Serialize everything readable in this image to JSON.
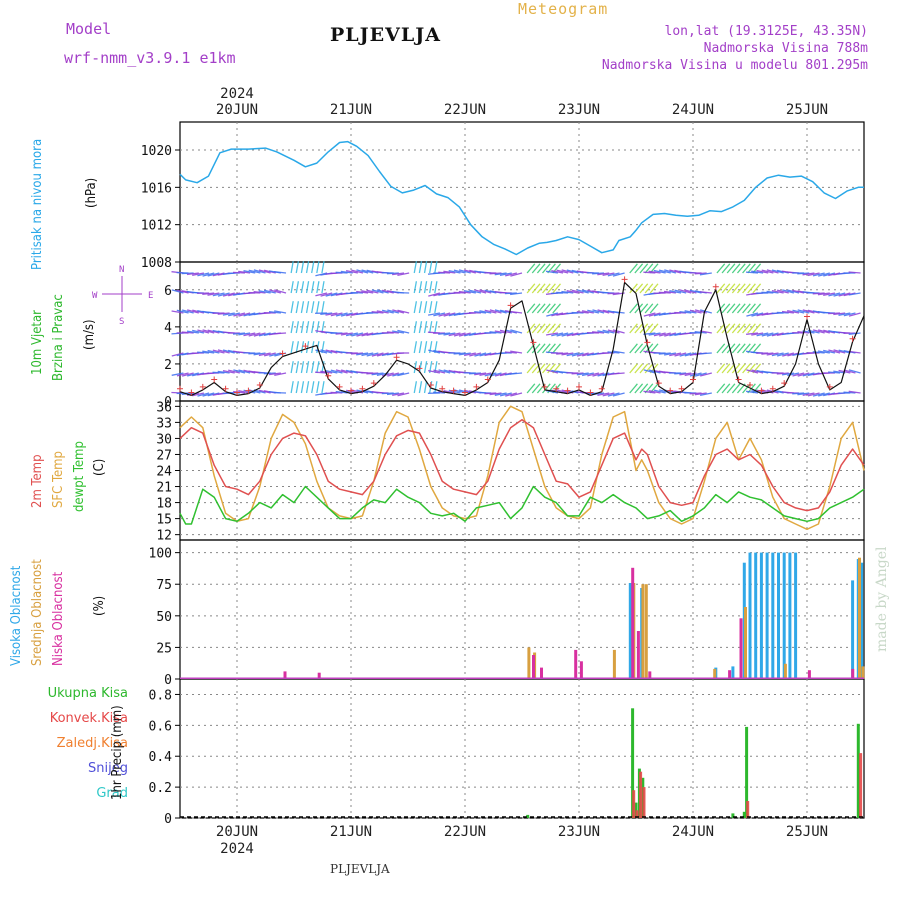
{
  "header": {
    "model_label": "Model",
    "model_name": "wrf-nmm_v3.9.1  e1km",
    "title": "PLJEVLJA",
    "product": "Meteogram",
    "lonlat": "lon,lat (19.3125E, 43.35N)",
    "elevation": "Nadmorska Visina 788m",
    "model_elevation": "Nadmorska Visina u modelu 801.295m"
  },
  "footer": {
    "station": "PLJEVLJA",
    "credit": "made by Angel"
  },
  "colors": {
    "pressure": "#2aa8e8",
    "wind": "#22c040",
    "temp2m": "#e05050",
    "sfc": "#e0a840",
    "dewpt": "#30c030",
    "high_cloud": "#30a8e8",
    "mid_cloud": "#d8a040",
    "low_cloud": "#d830a0",
    "total_precip": "#2db82d",
    "conv_precip": "#e54848",
    "frozen_precip": "#f08030",
    "snow": "#5050d8",
    "graupel": "#30c8c8",
    "axis_label": "#111111",
    "brand": "#a33fc8"
  },
  "axis_labels": {
    "pressure": [
      "Pritisak na nivou mora",
      "(hPa)"
    ],
    "wind": [
      "10m Vjetar",
      "Brzina i Pravac",
      "(m/s)"
    ],
    "temp": [
      "2m Temp",
      "SFC Temp",
      "dewpt Temp",
      "(C)"
    ],
    "cloud": [
      "Visoka Oblacnost",
      "Srednja Oblacnost",
      "Niska Oblacnost",
      "(%)"
    ],
    "precip": [
      "1hr Precip (mm)"
    ],
    "precip_legend": [
      "Ukupna Kisa",
      "Konvek.Kisa",
      "Zaledj.Kisa",
      "Snijeg",
      "Grad"
    ],
    "compass": [
      "N",
      "S",
      "W",
      "E"
    ]
  },
  "chart_data": {
    "type": "line",
    "year": "2024",
    "x_ticks": [
      "20JUN",
      "21JUN",
      "22JUN",
      "23JUN",
      "24JUN",
      "25JUN"
    ],
    "panels": [
      {
        "name": "pressure",
        "unit": "hPa",
        "ylim": [
          1008,
          1023
        ],
        "ticks": [
          1008,
          1012,
          1016,
          1020
        ],
        "series": [
          {
            "name": "Pritisak na nivou mora",
            "x": [
              -0.5,
              -0.45,
              -0.35,
              -0.25,
              -0.15,
              -0.05,
              0.1,
              0.25,
              0.35,
              0.5,
              0.6,
              0.7,
              0.8,
              0.9,
              0.97,
              1.05,
              1.15,
              1.25,
              1.35,
              1.45,
              1.55,
              1.65,
              1.75,
              1.85,
              1.95,
              2.05,
              2.15,
              2.25,
              2.35,
              2.45,
              2.55,
              2.65,
              2.72,
              2.8,
              2.9,
              3.0,
              3.1,
              3.2,
              3.3,
              3.35,
              3.45,
              3.5,
              3.55,
              3.65,
              3.75,
              3.85,
              3.95,
              4.05,
              4.15,
              4.25,
              4.35,
              4.45,
              4.55,
              4.65,
              4.75,
              4.85,
              4.95,
              5.05,
              5.15,
              5.25,
              5.35,
              5.45,
              5.5
            ],
            "values": [
              1017.4,
              1016.8,
              1016.5,
              1017.2,
              1019.7,
              1020.1,
              1020.1,
              1020.2,
              1019.8,
              1018.9,
              1018.2,
              1018.6,
              1019.8,
              1020.8,
              1020.9,
              1020.4,
              1019.4,
              1017.7,
              1016.1,
              1015.4,
              1015.7,
              1016.2,
              1015.3,
              1014.9,
              1013.9,
              1012.0,
              1010.7,
              1009.9,
              1009.4,
              1008.8,
              1009.5,
              1010.0,
              1010.1,
              1010.3,
              1010.7,
              1010.4,
              1009.7,
              1009.0,
              1009.3,
              1010.3,
              1010.7,
              1011.4,
              1012.2,
              1013.1,
              1013.2,
              1013.0,
              1012.9,
              1013.0,
              1013.5,
              1013.4,
              1013.9,
              1014.6,
              1016.0,
              1017.0,
              1017.3,
              1017.1,
              1017.2,
              1016.6,
              1015.4,
              1014.8,
              1015.6,
              1016.0,
              1016.0
            ]
          }
        ]
      },
      {
        "name": "wind",
        "unit": "m/s",
        "ylim": [
          0,
          7.5
        ],
        "ticks": [
          0,
          2,
          4,
          6
        ],
        "series": [
          {
            "name": "10m Vjetar Brzina",
            "x": [
              -0.5,
              -0.4,
              -0.3,
              -0.2,
              -0.1,
              0.0,
              0.1,
              0.2,
              0.3,
              0.4,
              0.5,
              0.6,
              0.7,
              0.8,
              0.9,
              1.0,
              1.1,
              1.2,
              1.3,
              1.4,
              1.5,
              1.6,
              1.7,
              1.8,
              1.9,
              2.0,
              2.1,
              2.2,
              2.3,
              2.4,
              2.5,
              2.6,
              2.7,
              2.8,
              2.9,
              3.0,
              3.1,
              3.2,
              3.3,
              3.4,
              3.5,
              3.6,
              3.7,
              3.8,
              3.9,
              4.0,
              4.1,
              4.2,
              4.3,
              4.4,
              4.5,
              4.6,
              4.7,
              4.8,
              4.9,
              5.0,
              5.1,
              5.2,
              5.3,
              5.4,
              5.5
            ],
            "values": [
              0.5,
              0.3,
              0.6,
              1.0,
              0.5,
              0.3,
              0.4,
              0.7,
              1.8,
              2.4,
              2.6,
              2.8,
              3.0,
              1.2,
              0.6,
              0.4,
              0.5,
              0.8,
              1.4,
              2.2,
              2.0,
              1.6,
              0.7,
              0.5,
              0.4,
              0.3,
              0.6,
              1.0,
              2.2,
              5.0,
              5.4,
              3.0,
              0.6,
              0.5,
              0.4,
              0.6,
              0.3,
              0.5,
              2.8,
              6.4,
              5.8,
              3.0,
              0.8,
              0.4,
              0.5,
              1.0,
              4.8,
              6.0,
              3.4,
              1.0,
              0.7,
              0.4,
              0.5,
              0.8,
              2.0,
              4.4,
              2.0,
              0.6,
              1.0,
              3.2,
              4.6
            ]
          }
        ]
      },
      {
        "name": "temp",
        "unit": "C",
        "ylim": [
          11,
          37
        ],
        "ticks": [
          12,
          15,
          18,
          21,
          24,
          27,
          30,
          33,
          36
        ],
        "series": [
          {
            "name": "2m Temp",
            "x": [
              -0.5,
              -0.4,
              -0.3,
              -0.2,
              -0.1,
              0.0,
              0.1,
              0.2,
              0.3,
              0.4,
              0.5,
              0.6,
              0.7,
              0.8,
              0.9,
              1.0,
              1.1,
              1.2,
              1.3,
              1.4,
              1.5,
              1.6,
              1.7,
              1.8,
              1.9,
              2.0,
              2.1,
              2.2,
              2.3,
              2.4,
              2.5,
              2.6,
              2.7,
              2.8,
              2.9,
              3.0,
              3.1,
              3.2,
              3.3,
              3.4,
              3.5,
              3.55,
              3.6,
              3.7,
              3.8,
              3.9,
              4.0,
              4.1,
              4.2,
              4.3,
              4.4,
              4.5,
              4.6,
              4.7,
              4.8,
              4.9,
              5.0,
              5.1,
              5.2,
              5.3,
              5.4,
              5.5
            ],
            "values": [
              30,
              32,
              31,
              25,
              21,
              20.5,
              19.5,
              22,
              27,
              30,
              31,
              30.5,
              27,
              22,
              20.5,
              20,
              19.5,
              22,
              27,
              30.5,
              31.5,
              31,
              27,
              22,
              20.5,
              20,
              19.5,
              22,
              28,
              32,
              33.5,
              32,
              27,
              22,
              21.5,
              19,
              20,
              25,
              30,
              31,
              26,
              28,
              27,
              21,
              18,
              17.5,
              18,
              23,
              27,
              28,
              26,
              27,
              25,
              21,
              18,
              17,
              16.5,
              17,
              20,
              25,
              28,
              25
            ]
          },
          {
            "name": "SFC Temp",
            "x": [
              -0.5,
              -0.4,
              -0.3,
              -0.2,
              -0.1,
              0.0,
              0.1,
              0.2,
              0.3,
              0.4,
              0.5,
              0.6,
              0.7,
              0.8,
              0.9,
              1.0,
              1.1,
              1.2,
              1.3,
              1.4,
              1.5,
              1.6,
              1.7,
              1.8,
              1.9,
              2.0,
              2.1,
              2.2,
              2.3,
              2.4,
              2.5,
              2.6,
              2.7,
              2.8,
              2.9,
              3.0,
              3.1,
              3.2,
              3.3,
              3.4,
              3.5,
              3.55,
              3.6,
              3.7,
              3.8,
              3.9,
              4.0,
              4.1,
              4.2,
              4.3,
              4.4,
              4.5,
              4.6,
              4.7,
              4.8,
              4.9,
              5.0,
              5.1,
              5.2,
              5.3,
              5.4,
              5.5
            ],
            "values": [
              32,
              34,
              32,
              23,
              16,
              14.5,
              15,
              21,
              30,
              34.5,
              33,
              29,
              22,
              17,
              15.5,
              15,
              15.5,
              22,
              31,
              35,
              34,
              28,
              21,
              17,
              15.5,
              15,
              15.5,
              23,
              33,
              36,
              35,
              28,
              21,
              17,
              15.5,
              15,
              17,
              27,
              34,
              35,
              24,
              26,
              24,
              18,
              15,
              14,
              15,
              22,
              30,
              33,
              26,
              30,
              26,
              19,
              15,
              14,
              13,
              14,
              21,
              30,
              33,
              24
            ]
          },
          {
            "name": "dewpt Temp",
            "x": [
              -0.5,
              -0.45,
              -0.4,
              -0.3,
              -0.2,
              -0.1,
              0.0,
              0.1,
              0.2,
              0.3,
              0.4,
              0.5,
              0.6,
              0.7,
              0.8,
              0.9,
              1.0,
              1.1,
              1.2,
              1.3,
              1.4,
              1.5,
              1.6,
              1.7,
              1.8,
              1.9,
              2.0,
              2.1,
              2.2,
              2.3,
              2.4,
              2.5,
              2.6,
              2.7,
              2.8,
              2.9,
              3.0,
              3.1,
              3.2,
              3.3,
              3.4,
              3.5,
              3.6,
              3.7,
              3.8,
              3.9,
              4.0,
              4.1,
              4.2,
              4.3,
              4.4,
              4.5,
              4.6,
              4.7,
              4.8,
              4.9,
              5.0,
              5.1,
              5.2,
              5.3,
              5.4,
              5.5
            ],
            "values": [
              16,
              14,
              14,
              20.5,
              19,
              15,
              14.5,
              16,
              18,
              17,
              19.5,
              18,
              21,
              19,
              17,
              15,
              15,
              17,
              18.5,
              18,
              20.5,
              19,
              18,
              16,
              15.5,
              16,
              14.5,
              17,
              17.5,
              18,
              15,
              17,
              21,
              19,
              18,
              15.5,
              15.5,
              19,
              18,
              19.5,
              18,
              17,
              15,
              15.5,
              16.5,
              14.5,
              15.5,
              17,
              19.5,
              18,
              20,
              19,
              18.5,
              17,
              15.5,
              15,
              14.5,
              15,
              17,
              18,
              19,
              20.5
            ]
          }
        ]
      },
      {
        "name": "cloud",
        "unit": "%",
        "ylim": [
          0,
          110
        ],
        "ticks": [
          0,
          25,
          50,
          75,
          100
        ],
        "series": [
          {
            "name": "Visoka Oblacnost",
            "x": [
              3.45,
              3.55,
              4.2,
              4.35,
              4.45,
              4.5,
              4.55,
              4.6,
              4.65,
              4.7,
              4.75,
              4.8,
              4.85,
              4.9,
              5.4,
              5.45,
              5.48
            ],
            "values": [
              76,
              72,
              9,
              10,
              92,
              100,
              100,
              100,
              100,
              100,
              100,
              100,
              100,
              100,
              78,
              95,
              92
            ]
          },
          {
            "name": "Srednja Oblacnost",
            "x": [
              2.55,
              2.6,
              3.3,
              3.47,
              3.55,
              3.58,
              4.18,
              4.45,
              4.8,
              5.45,
              5.48
            ],
            "values": [
              25,
              21,
              23,
              76,
              75,
              75,
              8,
              57,
              12,
              96,
              10
            ]
          },
          {
            "name": "Niska Oblacnost",
            "x": [
              0.4,
              0.7,
              2.58,
              2.65,
              2.95,
              3.0,
              3.45,
              3.5,
              3.6,
              4.3,
              4.4,
              5.0,
              5.38
            ],
            "values": [
              6,
              5,
              19,
              9,
              23,
              14,
              88,
              38,
              6,
              7,
              48,
              7,
              8
            ]
          }
        ]
      },
      {
        "name": "precip",
        "unit": "mm",
        "ylim": [
          0,
          0.9
        ],
        "ticks": [
          0,
          0.2,
          0.4,
          0.6,
          0.8
        ],
        "series": [
          {
            "name": "Ukupna Kisa",
            "x": [
              2.55,
              3.47,
              3.5,
              3.53,
              3.56,
              4.35,
              4.45,
              4.47,
              5.45
            ],
            "values": [
              0.02,
              0.71,
              0.1,
              0.32,
              0.26,
              0.03,
              0.04,
              0.59,
              0.61
            ]
          },
          {
            "name": "Konvek.Kisa",
            "x": [
              3.48,
              3.51,
              3.54,
              3.57,
              4.48,
              5.47
            ],
            "values": [
              0.18,
              0.05,
              0.3,
              0.2,
              0.11,
              0.42
            ]
          }
        ]
      }
    ]
  }
}
